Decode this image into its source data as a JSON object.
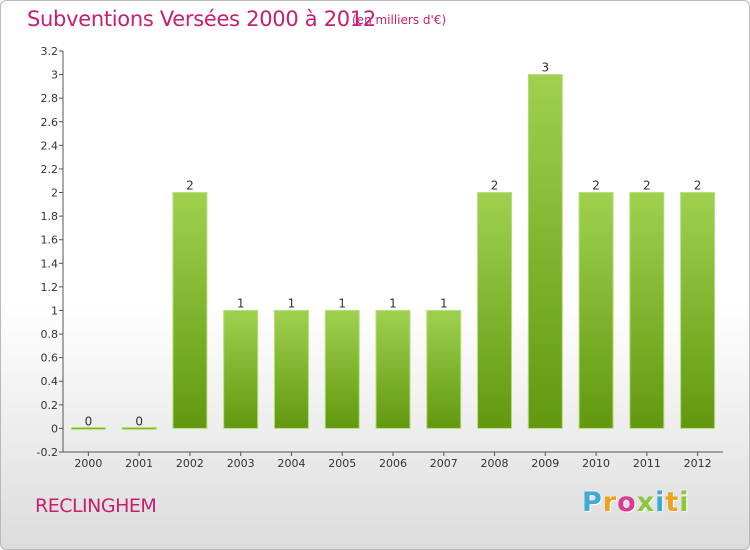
{
  "header": {
    "title": "Subventions Versées 2000 à 2012",
    "subtitle": "(en milliers d'€)"
  },
  "footer": {
    "commune": "RECLINGHEM",
    "brand": {
      "letters": [
        "P",
        "r",
        "o",
        "x",
        "i",
        "t",
        "i"
      ],
      "colors": [
        "#3fa9d6",
        "#f0a21b",
        "#d93d8f",
        "#8cc63f",
        "#3fa9d6",
        "#f0a21b",
        "#8cc63f"
      ]
    }
  },
  "chart_data": {
    "type": "bar",
    "title": "Subventions Versées 2000 à 2012",
    "subtitle": "(en milliers d'€)",
    "categories": [
      "2000",
      "2001",
      "2002",
      "2003",
      "2004",
      "2005",
      "2006",
      "2007",
      "2008",
      "2009",
      "2010",
      "2011",
      "2012"
    ],
    "values": [
      0,
      0,
      2,
      1,
      1,
      1,
      1,
      1,
      2,
      3,
      2,
      2,
      2
    ],
    "data_labels": [
      "0",
      "0",
      "2",
      "1",
      "1",
      "1",
      "1",
      "1",
      "2",
      "3",
      "2",
      "2",
      "2"
    ],
    "ylim": [
      -0.2,
      3.2
    ],
    "yticks": [
      -0.2,
      0,
      0.2,
      0.4,
      0.6,
      0.8,
      1,
      1.2,
      1.4,
      1.6,
      1.8,
      2,
      2.2,
      2.4,
      2.6,
      2.8,
      3,
      3.2
    ],
    "ytick_labels": [
      "-0.2",
      "0",
      "0.2",
      "0.4",
      "0.6",
      "0.8",
      "1",
      "1.2",
      "1.4",
      "1.6",
      "1.8",
      "2",
      "2.2",
      "2.4",
      "2.6",
      "2.8",
      "3",
      "3.2"
    ],
    "grid": false,
    "colors": {
      "bar_top": "#9fd14f",
      "bar_bottom": "#62980f",
      "text": "#333333",
      "axis": "#555555"
    }
  }
}
